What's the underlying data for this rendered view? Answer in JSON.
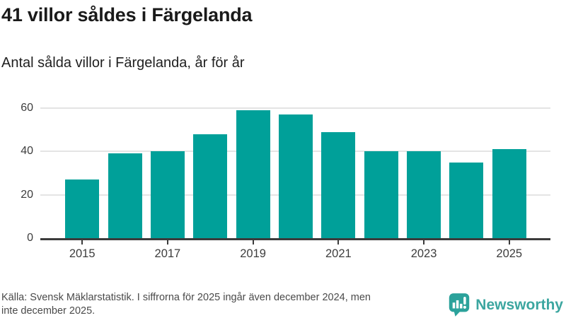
{
  "header": {
    "title": "41 villor såldes i Färgelanda",
    "subtitle": "Antal sålda villor i Färgelanda, år för år"
  },
  "chart_data": {
    "type": "bar",
    "categories": [
      2015,
      2016,
      2017,
      2018,
      2019,
      2020,
      2021,
      2022,
      2023,
      2024,
      2025
    ],
    "values": [
      27,
      39,
      40,
      48,
      59,
      57,
      49,
      40,
      40,
      35,
      41
    ],
    "title": "41 villor såldes i Färgelanda",
    "subtitle": "Antal sålda villor i Färgelanda, år för år",
    "xlabel": "",
    "ylabel": "",
    "ylim": [
      0,
      60
    ],
    "yticks": [
      0,
      20,
      40,
      60
    ],
    "xtick_labels": [
      "2015",
      "2017",
      "2019",
      "2021",
      "2023",
      "2025"
    ],
    "bar_color": "#00a099",
    "grid": true,
    "legend": false
  },
  "footer": {
    "source_lines": [
      "Källa: Svensk Mäklarstatistik. I siffrorna för 2025 ingår även december 2024, men",
      "inte december 2025."
    ],
    "brand": "Newsworthy"
  },
  "colors": {
    "bar": "#00a099",
    "brand_teal": "#3ca6a0",
    "logo_bubble": "#2ba29b",
    "axis": "#3b3b3b",
    "grid": "#e4e4e4",
    "title_text": "#1a1a1a",
    "muted_text": "#4a4a4a"
  }
}
